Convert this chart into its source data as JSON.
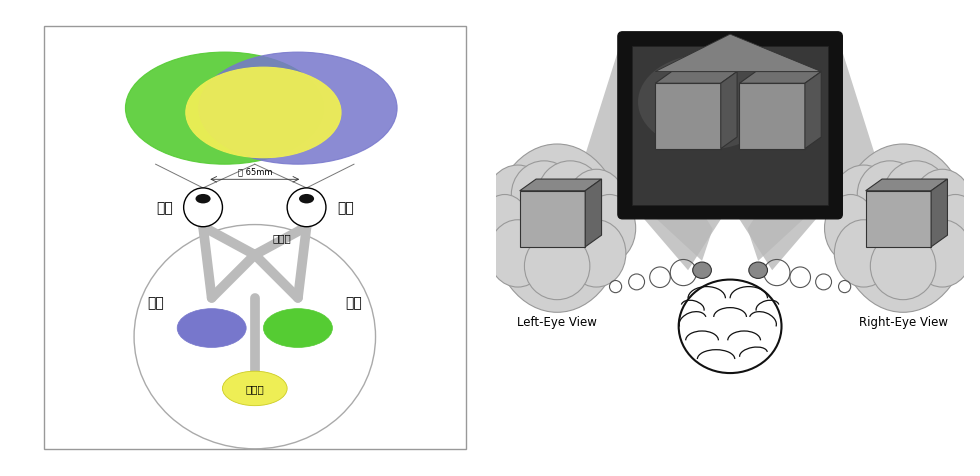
{
  "bg_color": "#ffffff",
  "left_panel": {
    "label_joean": "좌안",
    "label_uean": "우안",
    "label_joenoe": "좌뇌",
    "label_uenoe": "우뇌",
    "label_sisin": "시신경",
    "label_sigak": "시각령",
    "label_dist": "약 65mm",
    "color_green": "#55cc33",
    "color_blue": "#7777cc",
    "color_yellow": "#eeee55",
    "color_nerve": "#bbbbbb",
    "color_oval_edge": "#aaaaaa"
  },
  "right_panel": {
    "left_eye_label": "Left-Eye View",
    "right_eye_label": "Right-Eye View",
    "color_screen_bg": "#1a1a1a",
    "color_screen_inner": "#3a3a3a",
    "color_cube_face": "#999999",
    "color_cube_top": "#777777",
    "color_cube_side": "#555555",
    "color_cloud": "#cccccc",
    "color_light_cone": "#cccccc",
    "color_light_inner": "#e8e8e8",
    "color_brain_fill": "#ffffff",
    "color_brain_edge": "#111111"
  }
}
